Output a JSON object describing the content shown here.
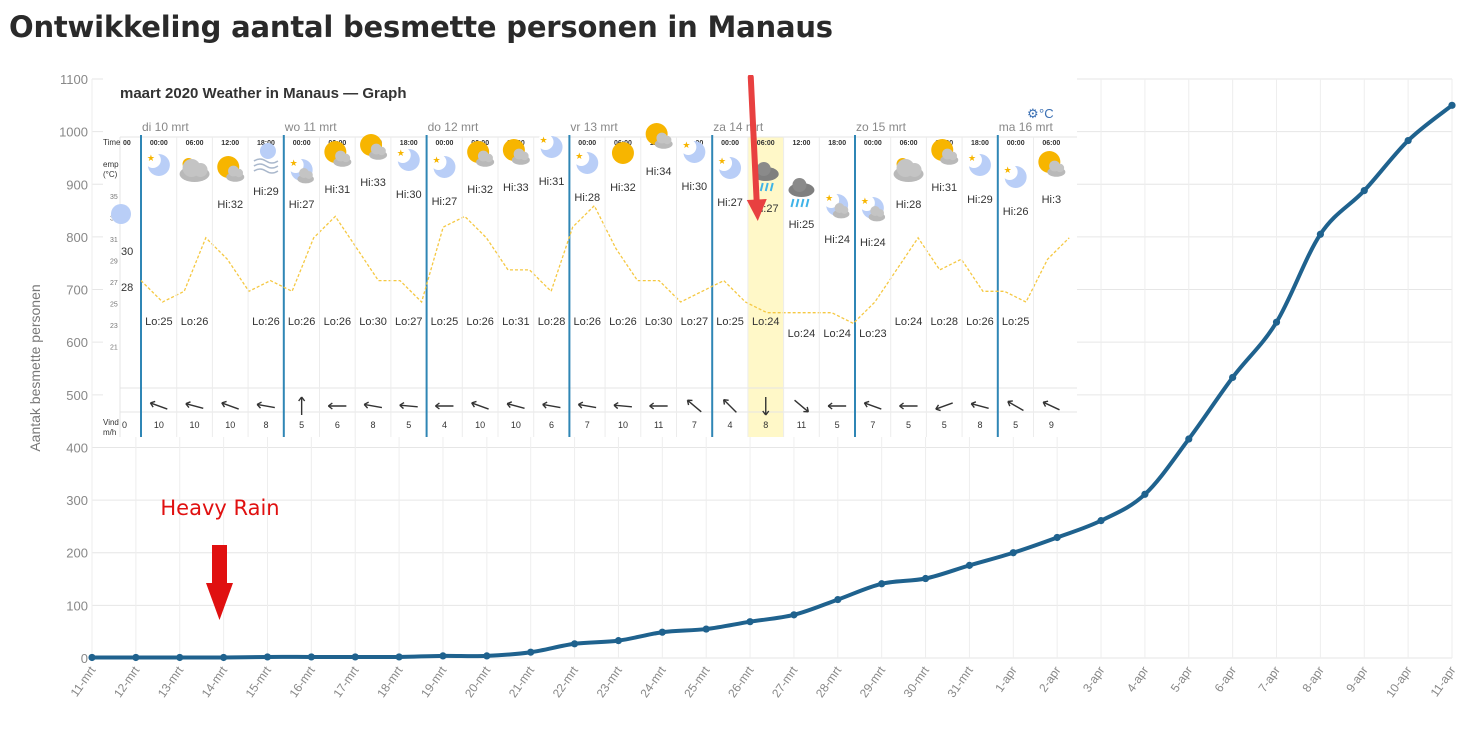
{
  "page": {
    "title": "Ontwikkeling aantal besmette personen in Manaus"
  },
  "chart_data": {
    "type": "line",
    "title": "Ontwikkeling aantal besmette personen in Manaus",
    "xlabel": "",
    "ylabel": "Aantak besmette personen",
    "ylim": [
      0,
      1100
    ],
    "yticks": [
      0,
      100,
      200,
      300,
      400,
      500,
      600,
      700,
      800,
      900,
      1000,
      1100
    ],
    "grid": true,
    "legend": "none",
    "colors": {
      "line": "#1f628e",
      "annotation": "#e01010",
      "arrow_top": "#e84040"
    },
    "categories": [
      "11-mrt",
      "12-mrt",
      "13-mrt",
      "14-mrt",
      "15-mrt",
      "16-mrt",
      "17-mrt",
      "18-mrt",
      "19-mrt",
      "20-mrt",
      "21-mrt",
      "22-mrt",
      "23-mrt",
      "24-mrt",
      "25-mrt",
      "26-mrt",
      "27-mrt",
      "28-mrt",
      "29-mrt",
      "30-mrt",
      "31-mrt",
      "1-apr",
      "2-apr",
      "3-apr",
      "4-apr",
      "5-apr",
      "6-apr",
      "7-apr",
      "8-apr",
      "9-apr",
      "10-apr",
      "11-apr"
    ],
    "series": [
      {
        "values": [
          1,
          1,
          1,
          1,
          2,
          2,
          2,
          2,
          4,
          4,
          11,
          27,
          33,
          49,
          55,
          69,
          82,
          111,
          141,
          151,
          176,
          200,
          229,
          261,
          311,
          416,
          533,
          638,
          805,
          888,
          983,
          1050
        ]
      }
    ],
    "annotations": [
      {
        "text": "Heavy Rain",
        "category": "14-mrt"
      }
    ]
  },
  "weather": {
    "header": "maart 2020 Weather in Manaus — Graph",
    "unit": "°C",
    "row_labels": {
      "time": "Time",
      "temp": "emp",
      "temp_unit": "(°C)",
      "wind": "Vind",
      "wind_unit": "m/h"
    },
    "temp_axis": [
      "35",
      "33",
      "31",
      "29",
      "27",
      "25",
      "23",
      "21"
    ],
    "days": [
      "di 10 mrt",
      "wo 11 mrt",
      "do 12 mrt",
      "vr 13 mrt",
      "za 14 mrt",
      "zo 15 mrt",
      "ma 16 mrt"
    ],
    "times": [
      "00:00",
      "06:00",
      "12:00",
      "18:00"
    ],
    "first_col_time": "00",
    "first_col_wind": "0",
    "first_col_temp": "30",
    "first_col_temp2": "28",
    "slots": [
      {
        "w": "10",
        "hi": "",
        "lo": "Lo:25",
        "icon": "moon"
      },
      {
        "w": "10",
        "hi": "",
        "lo": "Lo:26",
        "icon": "cloud"
      },
      {
        "w": "10",
        "hi": "Hi:32",
        "lo": "",
        "icon": "suncloud"
      },
      {
        "w": "8",
        "hi": "Hi:29",
        "lo": "Lo:26",
        "icon": "fogmoon"
      },
      {
        "w": "5",
        "hi": "Hi:27",
        "lo": "Lo:26",
        "icon": "mooncloud"
      },
      {
        "w": "6",
        "hi": "Hi:31",
        "lo": "Lo:26",
        "icon": "suncloud"
      },
      {
        "w": "8",
        "hi": "Hi:33",
        "lo": "Lo:30",
        "icon": "suncloud"
      },
      {
        "w": "5",
        "hi": "Hi:30",
        "lo": "Lo:27",
        "icon": "moon"
      },
      {
        "w": "4",
        "hi": "Hi:27",
        "lo": "Lo:25",
        "icon": "moon"
      },
      {
        "w": "10",
        "hi": "Hi:32",
        "lo": "Lo:26",
        "icon": "suncloud"
      },
      {
        "w": "10",
        "hi": "Hi:33",
        "lo": "Lo:31",
        "icon": "suncloud"
      },
      {
        "w": "6",
        "hi": "Hi:31",
        "lo": "Lo:28",
        "icon": "moon"
      },
      {
        "w": "7",
        "hi": "Hi:28",
        "lo": "Lo:26",
        "icon": "moon"
      },
      {
        "w": "10",
        "hi": "Hi:32",
        "lo": "Lo:26",
        "icon": "sun"
      },
      {
        "w": "11",
        "hi": "Hi:34",
        "lo": "Lo:30",
        "icon": "suncloud"
      },
      {
        "w": "7",
        "hi": "Hi:30",
        "lo": "Lo:27",
        "icon": "moon"
      },
      {
        "w": "4",
        "hi": "Hi:27",
        "lo": "Lo:25",
        "icon": "moon"
      },
      {
        "w": "8",
        "hi": "Hi:27",
        "lo": "Lo:24",
        "icon": "rain"
      },
      {
        "w": "11",
        "hi": "Hi:25",
        "lo": "Lo:24",
        "icon": "rain"
      },
      {
        "w": "5",
        "hi": "Hi:24",
        "lo": "Lo:24",
        "icon": "mooncloud"
      },
      {
        "w": "7",
        "hi": "Hi:24",
        "lo": "Lo:23",
        "icon": "mooncloud"
      },
      {
        "w": "5",
        "hi": "Hi:28",
        "lo": "Lo:24",
        "icon": "cloud"
      },
      {
        "w": "5",
        "hi": "Hi:31",
        "lo": "Lo:28",
        "icon": "suncloud"
      },
      {
        "w": "8",
        "hi": "Hi:29",
        "lo": "Lo:26",
        "icon": "moon"
      },
      {
        "w": "5",
        "hi": "Hi:26",
        "lo": "Lo:25",
        "icon": "moon"
      },
      {
        "w": "9",
        "hi": "Hi:3",
        "lo": "",
        "icon": "suncloud"
      }
    ]
  }
}
